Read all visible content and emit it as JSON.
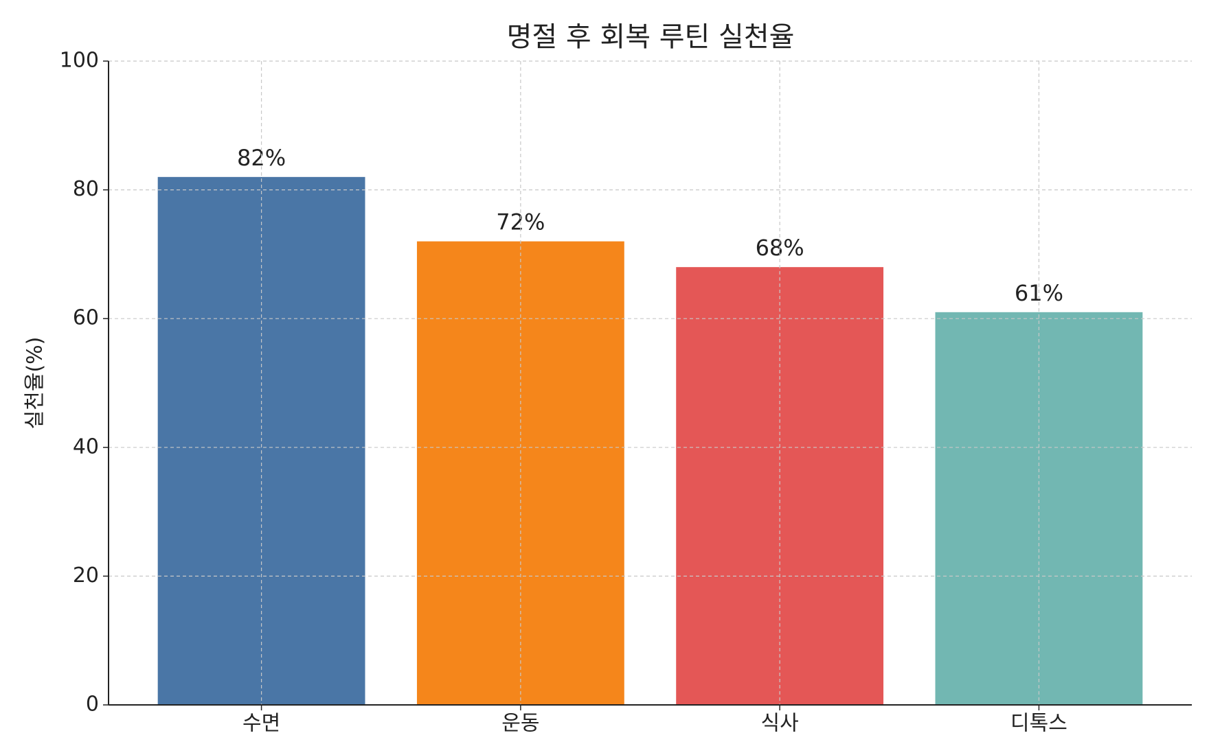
{
  "chart_data": {
    "type": "bar",
    "title": "명절 후 회복 루틴 실천율",
    "y_label": "실천율(%)",
    "categories": [
      "수면",
      "운동",
      "식사",
      "디톡스"
    ],
    "values": [
      82,
      72,
      68,
      61
    ],
    "value_labels": [
      "82%",
      "72%",
      "68%",
      "61%"
    ],
    "colors": [
      "#4a76a6",
      "#f5861b",
      "#e45756",
      "#72b7b2"
    ],
    "ylim": [
      0,
      100
    ],
    "yticks": [
      0,
      20,
      40,
      60,
      80,
      100
    ],
    "grid": true
  }
}
